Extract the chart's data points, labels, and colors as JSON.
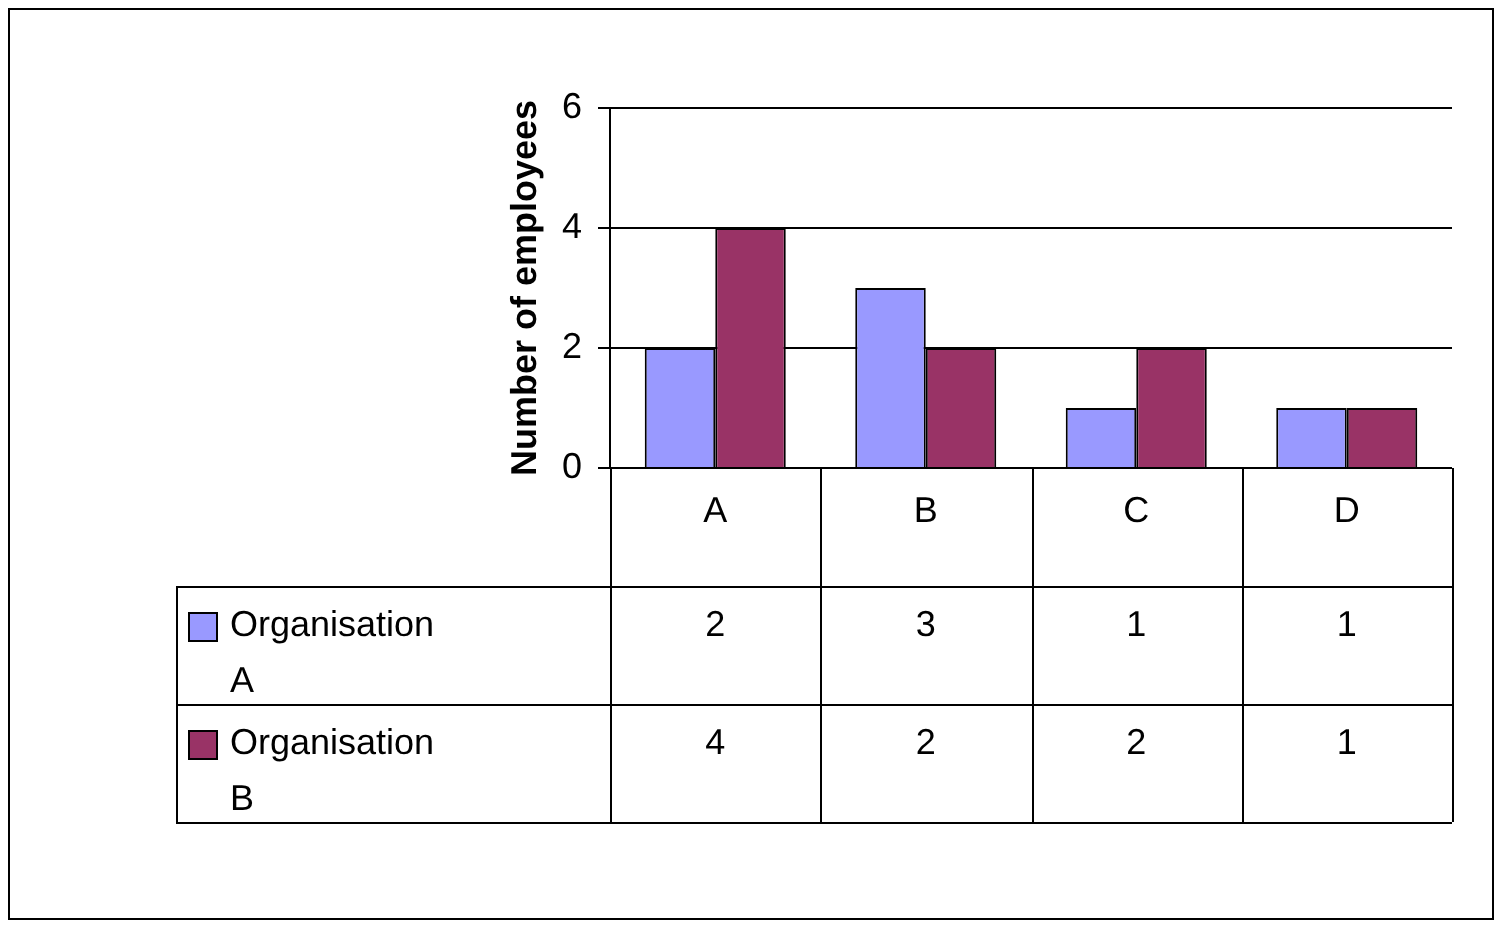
{
  "chart_data": {
    "type": "bar",
    "ylabel": "Number of employees",
    "categories": [
      "A",
      "B",
      "C",
      "D"
    ],
    "series": [
      {
        "name": "Organisation A",
        "color": "#9999ff",
        "values": [
          2,
          3,
          1,
          1
        ]
      },
      {
        "name": "Organisation B",
        "color": "#993366",
        "values": [
          4,
          2,
          2,
          1
        ]
      }
    ],
    "ylim": [
      0,
      6
    ],
    "yticks": [
      0,
      2,
      4,
      6
    ],
    "grid": "y",
    "legend": "bottom left",
    "data_labels": true
  }
}
